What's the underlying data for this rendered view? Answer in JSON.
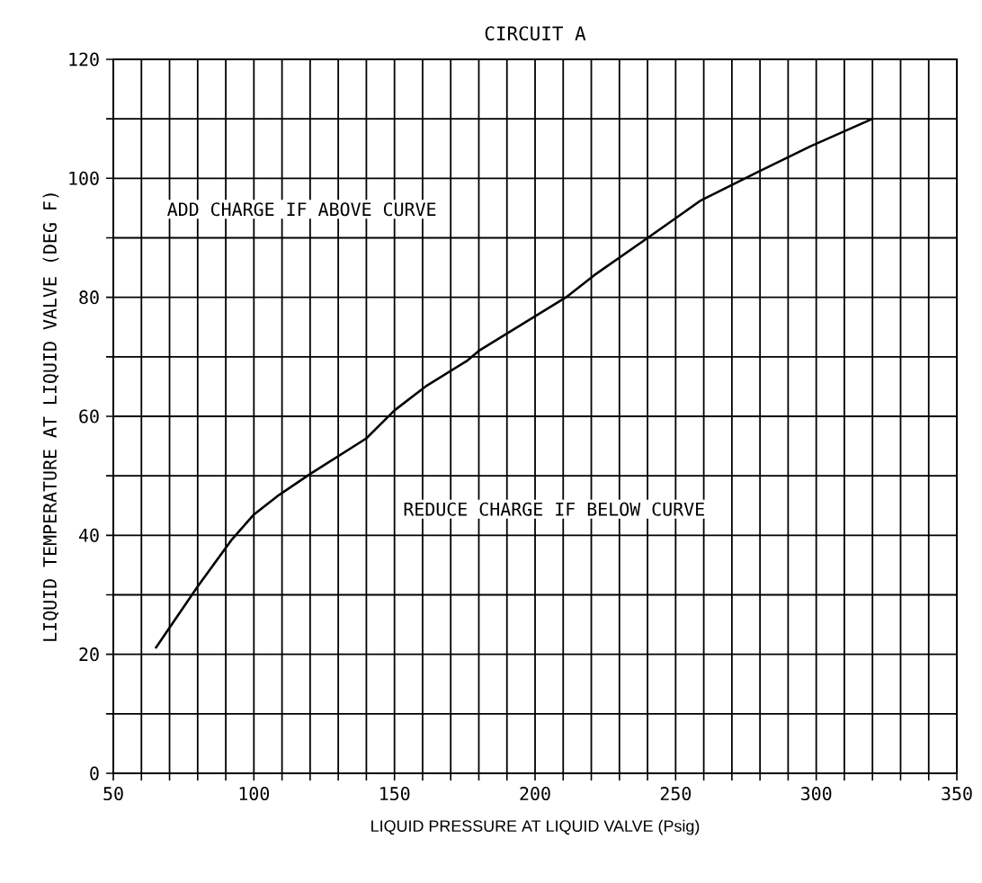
{
  "chart_data": {
    "type": "line",
    "title": "CIRCUIT A",
    "xlabel": "LIQUID PRESSURE AT LIQUID VALVE (Psig)",
    "ylabel": "LIQUID TEMPERATURE AT LIQUID VALVE (DEG F)",
    "annotations": [
      "ADD CHARGE IF ABOVE CURVE",
      "REDUCE CHARGE IF BELOW CURVE"
    ],
    "x": [
      65,
      80,
      92,
      100,
      109,
      120,
      140,
      150,
      161,
      176,
      180,
      211,
      221,
      241,
      259,
      279,
      298,
      320
    ],
    "series": [
      {
        "color": "#000000",
        "values": [
          21,
          31.4,
          39.2,
          43.5,
          46.8,
          50.3,
          56.3,
          61,
          65,
          69.4,
          71,
          80,
          83.7,
          90.3,
          96.3,
          101,
          105.4,
          110
        ]
      }
    ],
    "xlim": [
      50,
      350
    ],
    "ylim": [
      0,
      120
    ],
    "xticks": [
      50,
      {
        "value": 60,
        "label": null
      },
      {
        "value": 70,
        "label": null
      },
      {
        "value": 80,
        "label": null
      },
      {
        "value": 90,
        "label": null
      },
      100,
      {
        "value": 110,
        "label": null
      },
      {
        "value": 120,
        "label": null
      },
      {
        "value": 130,
        "label": null
      },
      {
        "value": 140,
        "label": null
      },
      150,
      {
        "value": 160,
        "label": null
      },
      {
        "value": 170,
        "label": null
      },
      {
        "value": 180,
        "label": null
      },
      {
        "value": 190,
        "label": null
      },
      200,
      {
        "value": 210,
        "label": null
      },
      {
        "value": 220,
        "label": null
      },
      {
        "value": 230,
        "label": null
      },
      {
        "value": 240,
        "label": null
      },
      250,
      {
        "value": 260,
        "label": null
      },
      {
        "value": 270,
        "label": null
      },
      {
        "value": 280,
        "label": null
      },
      {
        "value": 290,
        "label": null
      },
      300,
      {
        "value": 310,
        "label": null
      },
      {
        "value": 320,
        "label": null
      },
      {
        "value": 330,
        "label": null
      },
      {
        "value": 340,
        "label": null
      },
      350
    ],
    "yticks": [
      0,
      {
        "value": 10,
        "label": null
      },
      20,
      {
        "value": 30,
        "label": null
      },
      40,
      {
        "value": 50,
        "label": null
      },
      60,
      {
        "value": 70,
        "label": null
      },
      80,
      {
        "value": 90,
        "label": null
      },
      100,
      {
        "value": 110,
        "label": null
      },
      120
    ],
    "grid": true,
    "marker": "none",
    "line_style": "solid"
  }
}
